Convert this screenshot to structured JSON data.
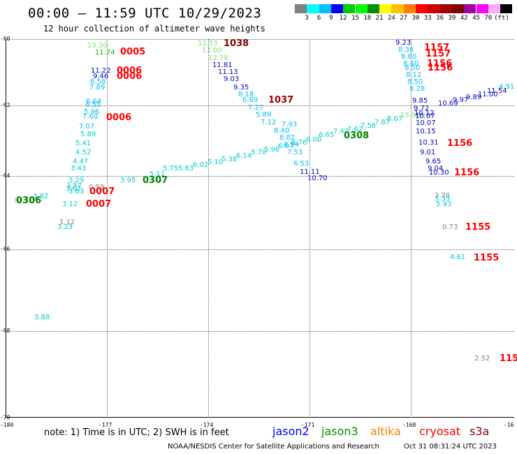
{
  "header": {
    "title": "00:00 – 11:59 UTC 10/29/2023",
    "subtitle": "12 hour collection of altimeter wave heights"
  },
  "colorbar": {
    "unit": "(ft)",
    "colors": [
      "#808080",
      "#00ffff",
      "#00bfff",
      "#0000ff",
      "#00cd00",
      "#00ff00",
      "#009000",
      "#ffff00",
      "#ffc000",
      "#ff8000",
      "#ff0000",
      "#d00000",
      "#a00000",
      "#800000",
      "#a000a0",
      "#ff00ff",
      "#ffaaff",
      "#000000"
    ],
    "labels": [
      "3",
      "6",
      "9",
      "12",
      "15",
      "18",
      "21",
      "24",
      "27",
      "30",
      "33",
      "36",
      "39",
      "42",
      "45",
      "70"
    ]
  },
  "axes": {
    "y_ticks": [
      "-60",
      "-62",
      "-64",
      "-66",
      "-68",
      "-70"
    ],
    "x_ticks": [
      "-180",
      "-177",
      "-174",
      "-171",
      "-168",
      "-16"
    ]
  },
  "observations": [
    {
      "t": "13.30",
      "c": "#80e080"
    },
    {
      "t": "11.74",
      "c": "#00c000"
    },
    {
      "t": "11.22",
      "c": "#0000cc"
    },
    {
      "t": "9.46",
      "c": "#0000cc"
    },
    {
      "t": "8.58",
      "c": "#00bfff"
    },
    {
      "t": "7.89",
      "c": "#00bfff"
    },
    {
      "t": "6.64",
      "c": "#00bfff"
    },
    {
      "t": "6.55",
      "c": "#00bfff"
    },
    {
      "t": "5.96",
      "c": "#00bfff"
    },
    {
      "t": "7.60",
      "c": "#00bfff"
    },
    {
      "t": "7.07",
      "c": "#00bfff"
    },
    {
      "t": "5.89",
      "c": "#00cccc"
    },
    {
      "t": "5.41",
      "c": "#00cccc"
    },
    {
      "t": "4.52",
      "c": "#00cccc"
    },
    {
      "t": "4.47",
      "c": "#00cccc"
    },
    {
      "t": "3.43",
      "c": "#00cccc"
    },
    {
      "t": "3.29",
      "c": "#00cccc"
    },
    {
      "t": "3.57",
      "c": "#00cccc"
    },
    {
      "t": "3.62",
      "c": "#00cccc"
    },
    {
      "t": "3.63",
      "c": "#00cccc"
    },
    {
      "t": "0.59",
      "c": "#808080"
    },
    {
      "t": "14.32",
      "c": "#80e080"
    },
    {
      "t": "3.82",
      "c": "#00cccc"
    },
    {
      "t": "3.12",
      "c": "#00cccc"
    },
    {
      "t": "1.12",
      "c": "#808080"
    },
    {
      "t": "3.23",
      "c": "#00cccc"
    },
    {
      "t": "3.88",
      "c": "#00cccc"
    },
    {
      "t": "3.95",
      "c": "#00cccc"
    },
    {
      "t": "5.11",
      "c": "#00cccc"
    },
    {
      "t": "5.75",
      "c": "#00cccc"
    },
    {
      "t": "5.63",
      "c": "#00cccc"
    },
    {
      "t": "6.02",
      "c": "#00cccc"
    },
    {
      "t": "5.10",
      "c": "#00cccc"
    },
    {
      "t": "5.38",
      "c": "#00cccc"
    },
    {
      "t": "6.14",
      "c": "#00cccc"
    },
    {
      "t": "5.70",
      "c": "#00cccc"
    },
    {
      "t": "5.96",
      "c": "#00cccc"
    },
    {
      "t": "6.07",
      "c": "#00cccc"
    },
    {
      "t": "6.76",
      "c": "#00cccc"
    },
    {
      "t": "6.00",
      "c": "#00cccc"
    },
    {
      "t": "6.65",
      "c": "#00cccc"
    },
    {
      "t": "7.47",
      "c": "#00cccc"
    },
    {
      "t": "7.62",
      "c": "#00cccc"
    },
    {
      "t": "7.56",
      "c": "#00cccc"
    },
    {
      "t": "7.87",
      "c": "#00cccc"
    },
    {
      "t": "8.67",
      "c": "#00cccc"
    },
    {
      "t": "13.96",
      "c": "#80e080"
    },
    {
      "t": "12.53",
      "c": "#80e080"
    },
    {
      "t": "13.00",
      "c": "#80e080"
    },
    {
      "t": "12.78",
      "c": "#80e080"
    },
    {
      "t": "11.81",
      "c": "#0000cc"
    },
    {
      "t": "11.13",
      "c": "#0000cc"
    },
    {
      "t": "9.03",
      "c": "#0000cc"
    },
    {
      "t": "9.35",
      "c": "#0000cc"
    },
    {
      "t": "8.18",
      "c": "#00bfff"
    },
    {
      "t": "6.89",
      "c": "#00bfff"
    },
    {
      "t": "7.27",
      "c": "#00bfff"
    },
    {
      "t": "5.89",
      "c": "#00bfff"
    },
    {
      "t": "7.12",
      "c": "#00bfff"
    },
    {
      "t": "7.93",
      "c": "#00bfff"
    },
    {
      "t": "8.40",
      "c": "#00bfff"
    },
    {
      "t": "8.82",
      "c": "#00bfff"
    },
    {
      "t": "8.94",
      "c": "#00bfff"
    },
    {
      "t": "7.53",
      "c": "#00bfff"
    },
    {
      "t": "6.53",
      "c": "#00bfff"
    },
    {
      "t": "11.11",
      "c": "#0000cc"
    },
    {
      "t": "10.70",
      "c": "#0000cc"
    },
    {
      "t": "9.23",
      "c": "#0000cc"
    },
    {
      "t": "8.36",
      "c": "#00bfff"
    },
    {
      "t": "8.80",
      "c": "#00bfff"
    },
    {
      "t": "8.40",
      "c": "#00bfff"
    },
    {
      "t": "8.50",
      "c": "#00bfff"
    },
    {
      "t": "8.12",
      "c": "#00bfff"
    },
    {
      "t": "8.50",
      "c": "#00bfff"
    },
    {
      "t": "8.28",
      "c": "#00bfff"
    },
    {
      "t": "9.85",
      "c": "#0000cc"
    },
    {
      "t": "9.72",
      "c": "#0000cc"
    },
    {
      "t": "10.12",
      "c": "#0000cc"
    },
    {
      "t": "10.07",
      "c": "#0000cc"
    },
    {
      "t": "10.07",
      "c": "#0000cc"
    },
    {
      "t": "10.15",
      "c": "#0000cc"
    },
    {
      "t": "10.31",
      "c": "#0000cc"
    },
    {
      "t": "9.01",
      "c": "#0000cc"
    },
    {
      "t": "9.65",
      "c": "#0000cc"
    },
    {
      "t": "9.04",
      "c": "#0000cc"
    },
    {
      "t": "10.30",
      "c": "#0000cc"
    },
    {
      "t": "10.69",
      "c": "#0000cc"
    },
    {
      "t": "9.97",
      "c": "#0000cc"
    },
    {
      "t": "9.89",
      "c": "#0000cc"
    },
    {
      "t": "11.00",
      "c": "#0000cc"
    },
    {
      "t": "11.54",
      "c": "#0000cc"
    },
    {
      "t": "4.91",
      "c": "#00cccc"
    },
    {
      "t": "2.70",
      "c": "#808080"
    },
    {
      "t": "3.33",
      "c": "#00cccc"
    },
    {
      "t": "5.93",
      "c": "#00cccc"
    },
    {
      "t": "0.73",
      "c": "#808080"
    },
    {
      "t": "4.61",
      "c": "#00cccc"
    },
    {
      "t": "2.52",
      "c": "#808080"
    }
  ],
  "time_marks": [
    {
      "t": "0005",
      "c": "#ff0000"
    },
    {
      "t": "0006",
      "c": "#ff0000"
    },
    {
      "t": "0006",
      "c": "#ff0000"
    },
    {
      "t": "0006",
      "c": "#ff0000"
    },
    {
      "t": "0007",
      "c": "#ff0000"
    },
    {
      "t": "0007",
      "c": "#ff0000"
    },
    {
      "t": "0306",
      "c": "#008000"
    },
    {
      "t": "0307",
      "c": "#008000"
    },
    {
      "t": "0308",
      "c": "#008000"
    },
    {
      "t": "1038",
      "c": "#800000"
    },
    {
      "t": "1037",
      "c": "#a00000"
    },
    {
      "t": "1157",
      "c": "#ff0000"
    },
    {
      "t": "1157",
      "c": "#ff0000"
    },
    {
      "t": "1156",
      "c": "#ff0000"
    },
    {
      "t": "1156",
      "c": "#ff0000"
    },
    {
      "t": "1156",
      "c": "#ff0000"
    },
    {
      "t": "1156",
      "c": "#ff0000"
    },
    {
      "t": "1155",
      "c": "#ff0000"
    },
    {
      "t": "1155",
      "c": "#ff0000"
    },
    {
      "t": "115",
      "c": "#ff0000"
    }
  ],
  "footer": {
    "note": "note:  1) Time is in UTC;  2) SWH is in feet",
    "legend": [
      {
        "name": "jason2",
        "color": "#0000ff"
      },
      {
        "name": "jason3",
        "color": "#009000"
      },
      {
        "name": "altika",
        "color": "#ff8000"
      },
      {
        "name": "cryosat",
        "color": "#ff0000"
      },
      {
        "name": "s3a",
        "color": "#800000"
      }
    ],
    "credit": "NOAA/NESDIS Center for Satellite Applications and Research",
    "timestamp": "Oct 31 08:31:24 UTC 2023"
  }
}
